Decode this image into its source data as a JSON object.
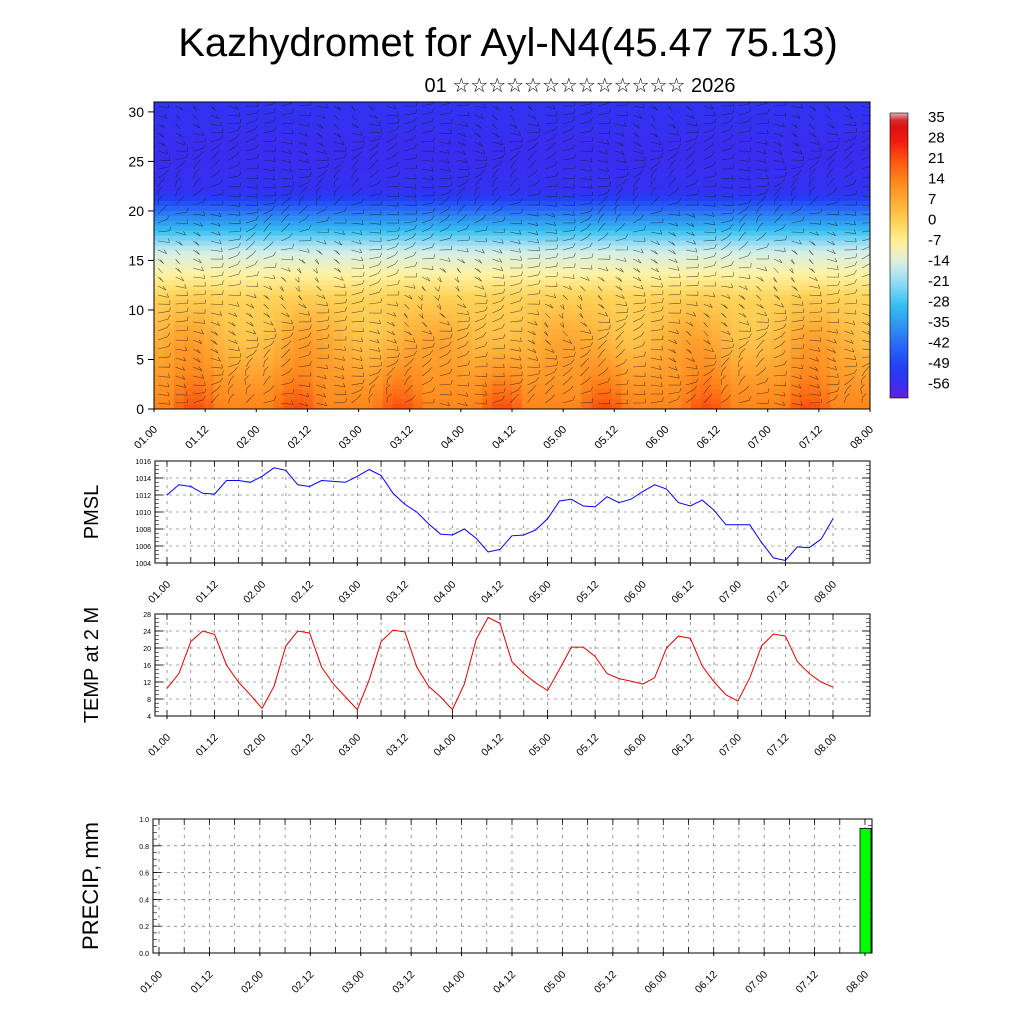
{
  "title": "Kazhydromet for Ayl-N4(45.47 75.13)",
  "subtitle": "01 ☆☆☆☆☆☆☆☆☆☆☆☆☆ 2026",
  "time_ticks": [
    "01.00",
    "01.12",
    "02.00",
    "02.12",
    "03.00",
    "03.12",
    "04.00",
    "04.12",
    "05.00",
    "05.12",
    "06.00",
    "06.12",
    "07.00",
    "07.12",
    "08.00"
  ],
  "colorbar_labels": [
    "35",
    "28",
    "21",
    "14",
    "7",
    "0",
    "-7",
    "-14",
    "-21",
    "-28",
    "-35",
    "-42",
    "-49",
    "-56"
  ],
  "chart_data": [
    {
      "type": "heatmap",
      "name": "cross-section",
      "description_shown": "temperature shading with wind barbs vs height",
      "y_ticks": [
        "0",
        "5",
        "10",
        "15",
        "20",
        "25",
        "30"
      ],
      "ylim": [
        0,
        31
      ],
      "color_range": [
        -60,
        38
      ],
      "palette": [
        [
          -60,
          "#6a1ed6"
        ],
        [
          -56,
          "#3b2cf0"
        ],
        [
          -49,
          "#2340f5"
        ],
        [
          -42,
          "#2868f5"
        ],
        [
          -35,
          "#2f95f2"
        ],
        [
          -28,
          "#36c0f0"
        ],
        [
          -21,
          "#8ad9f5"
        ],
        [
          -14,
          "#d6efe6"
        ],
        [
          -7,
          "#fff2a0"
        ],
        [
          0,
          "#ffd45a"
        ],
        [
          7,
          "#ffb03a"
        ],
        [
          14,
          "#ff8a1e"
        ],
        [
          21,
          "#ff5a10"
        ],
        [
          28,
          "#f21c10"
        ],
        [
          35,
          "#d30d12"
        ],
        [
          38,
          "#e8b0b8"
        ]
      ]
    },
    {
      "type": "line",
      "name": "PMSL",
      "ylabel": "PMSL",
      "ylim": [
        1004,
        1016
      ],
      "y_ticks": [
        "1004",
        "1006",
        "1008",
        "1010",
        "1012",
        "1014",
        "1016"
      ],
      "color": "#0000ff",
      "x_hours": [
        0,
        3,
        6,
        9,
        12,
        15,
        18,
        21,
        24,
        27,
        30,
        33,
        36,
        39,
        42,
        45,
        48,
        51,
        54,
        57,
        60,
        63,
        66,
        69,
        72,
        75,
        78,
        81,
        84,
        87,
        90,
        93,
        96,
        99,
        102,
        105,
        108,
        111,
        114,
        117,
        120,
        123,
        126,
        129,
        132,
        135,
        138,
        141,
        144,
        147,
        150,
        153,
        156,
        159,
        162,
        165,
        168
      ],
      "values": [
        1012.0,
        1013.2,
        1013.0,
        1012.2,
        1012.1,
        1013.7,
        1013.7,
        1013.5,
        1014.2,
        1015.2,
        1014.9,
        1013.2,
        1013.0,
        1013.7,
        1013.6,
        1013.5,
        1014.2,
        1015.0,
        1014.3,
        1012.2,
        1010.9,
        1010.0,
        1008.6,
        1007.4,
        1007.3,
        1008.0,
        1006.9,
        1005.3,
        1005.6,
        1007.2,
        1007.3,
        1007.9,
        1009.2,
        1011.3,
        1011.5,
        1010.7,
        1010.6,
        1011.8,
        1011.1,
        1011.5,
        1012.4,
        1013.2,
        1012.7,
        1011.1,
        1010.7,
        1011.4,
        1010.2,
        1008.5,
        1008.5,
        1008.5,
        1006.4,
        1004.6,
        1004.3,
        1005.9,
        1005.8,
        1006.8,
        1009.2
      ]
    },
    {
      "type": "line",
      "name": "TEMP at 2 M",
      "ylabel": "TEMP at 2 M",
      "ylim": [
        4,
        28
      ],
      "y_ticks": [
        "4",
        "8",
        "12",
        "16",
        "20",
        "24",
        "28"
      ],
      "color": "#e00000",
      "x_hours": [
        0,
        3,
        6,
        9,
        12,
        15,
        18,
        21,
        24,
        27,
        30,
        33,
        36,
        39,
        42,
        45,
        48,
        51,
        54,
        57,
        60,
        63,
        66,
        69,
        72,
        75,
        78,
        81,
        84,
        87,
        90,
        93,
        96,
        99,
        102,
        105,
        108,
        111,
        114,
        117,
        120,
        123,
        126,
        129,
        132,
        135,
        138,
        141,
        144,
        147,
        150,
        153,
        156,
        159,
        162,
        165,
        168
      ],
      "values": [
        10.5,
        14,
        21.5,
        24,
        23.2,
        16,
        12,
        9,
        5.8,
        11,
        20.5,
        24,
        23.5,
        15.5,
        11.5,
        8.5,
        5.5,
        12.5,
        21.5,
        24.2,
        23.8,
        15.5,
        11,
        8.5,
        5.5,
        11.5,
        22,
        27.2,
        25.8,
        16.8,
        14,
        11.8,
        10,
        15,
        20.2,
        20.2,
        18,
        14,
        12.8,
        12.2,
        11.5,
        13,
        20,
        22.8,
        22.3,
        15.8,
        12,
        9,
        7.5,
        13,
        20.5,
        23.3,
        22.8,
        16.8,
        14,
        12,
        10.8
      ]
    },
    {
      "type": "bar",
      "name": "PRECIP, mm",
      "ylabel": "PRECIP, mm",
      "ylim": [
        0,
        1.0
      ],
      "y_ticks": [
        "0.0",
        "0.2",
        "0.4",
        "0.6",
        "0.8",
        "1.0"
      ],
      "color": "#00ff00",
      "bars": [
        {
          "x_hours": 168,
          "value": 0.93
        }
      ]
    }
  ]
}
